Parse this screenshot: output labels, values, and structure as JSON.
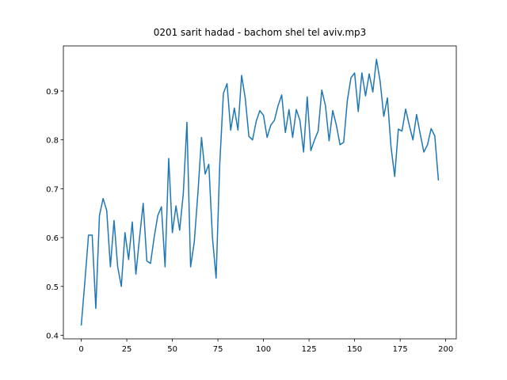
{
  "chart_data": {
    "type": "line",
    "title": "0201 sarit hadad - bachom shel tel aviv.mp3",
    "x": [
      0,
      2,
      4,
      6,
      8,
      10,
      12,
      14,
      16,
      18,
      20,
      22,
      24,
      26,
      28,
      30,
      32,
      34,
      36,
      38,
      40,
      42,
      44,
      46,
      48,
      50,
      52,
      54,
      56,
      58,
      60,
      62,
      64,
      66,
      68,
      70,
      72,
      74,
      76,
      78,
      80,
      82,
      84,
      86,
      88,
      90,
      92,
      94,
      96,
      98,
      100,
      102,
      104,
      106,
      108,
      110,
      112,
      114,
      116,
      118,
      120,
      122,
      124,
      126,
      128,
      130,
      132,
      134,
      136,
      138,
      140,
      142,
      144,
      146,
      148,
      150,
      152,
      154,
      156,
      158,
      160,
      162,
      164,
      166,
      168,
      170,
      172,
      174,
      176,
      178,
      180,
      182,
      184,
      186,
      188,
      190,
      192,
      194,
      196
    ],
    "values": [
      0.42,
      0.51,
      0.605,
      0.605,
      0.455,
      0.645,
      0.68,
      0.655,
      0.54,
      0.635,
      0.54,
      0.5,
      0.61,
      0.555,
      0.632,
      0.525,
      0.6,
      0.67,
      0.552,
      0.547,
      0.6,
      0.645,
      0.663,
      0.54,
      0.762,
      0.61,
      0.665,
      0.615,
      0.69,
      0.836,
      0.54,
      0.59,
      0.69,
      0.805,
      0.73,
      0.75,
      0.6,
      0.517,
      0.75,
      0.895,
      0.915,
      0.82,
      0.865,
      0.82,
      0.932,
      0.885,
      0.807,
      0.8,
      0.838,
      0.86,
      0.85,
      0.805,
      0.83,
      0.84,
      0.87,
      0.892,
      0.815,
      0.862,
      0.805,
      0.862,
      0.84,
      0.775,
      0.888,
      0.778,
      0.8,
      0.818,
      0.902,
      0.87,
      0.798,
      0.86,
      0.83,
      0.79,
      0.795,
      0.88,
      0.927,
      0.937,
      0.858,
      0.937,
      0.89,
      0.935,
      0.898,
      0.965,
      0.92,
      0.848,
      0.886,
      0.785,
      0.725,
      0.822,
      0.818,
      0.863,
      0.83,
      0.8,
      0.852,
      0.812,
      0.775,
      0.79,
      0.823,
      0.808,
      0.717
    ],
    "color": "#1f77b4",
    "xlim": [
      -9.8,
      205.8
    ],
    "xticks": [
      0,
      25,
      50,
      75,
      100,
      125,
      150,
      175,
      200
    ],
    "ylim": [
      0.3927,
      0.9923
    ],
    "yticks": [
      0.4,
      0.5,
      0.6,
      0.7,
      0.8,
      0.9
    ]
  }
}
